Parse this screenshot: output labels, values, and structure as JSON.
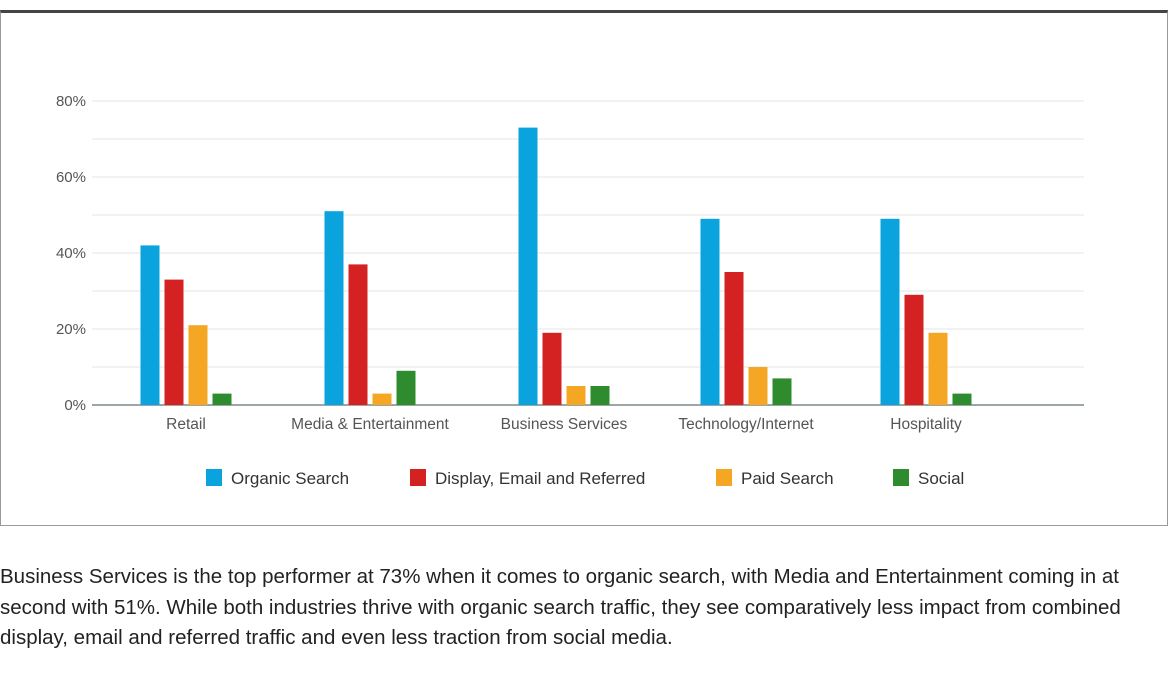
{
  "chart_data": {
    "type": "bar",
    "categories": [
      "Retail",
      "Media & Entertainment",
      "Business Services",
      "Technology/Internet",
      "Hospitality"
    ],
    "series": [
      {
        "name": "Organic Search",
        "values": [
          42,
          51,
          73,
          49,
          49
        ]
      },
      {
        "name": "Display, Email and Referred",
        "values": [
          33,
          37,
          19,
          35,
          29
        ]
      },
      {
        "name": "Paid Search",
        "values": [
          21,
          3,
          5,
          10,
          19
        ]
      },
      {
        "name": "Social",
        "values": [
          3,
          9,
          5,
          7,
          3
        ]
      }
    ],
    "yticks": [
      "0%",
      "20%",
      "40%",
      "60%",
      "80%"
    ],
    "ylim": [
      0,
      80
    ],
    "grid": true,
    "legend_position": "bottom",
    "colors": [
      "#0aa3de",
      "#d42121",
      "#f5a623",
      "#2e8b2e"
    ]
  },
  "caption": "Business Services is the top performer at 73% when it comes to organic search, with Media and Entertainment coming in at second with 51%. While both industries thrive with organic search traffic, they see comparatively less impact from combined display, email and referred traffic and even less traction from social media."
}
